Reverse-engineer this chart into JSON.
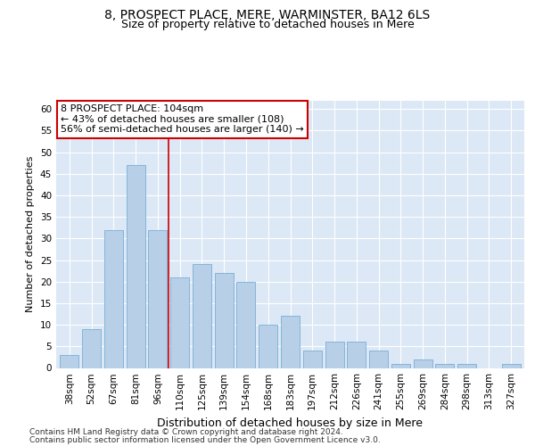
{
  "title1": "8, PROSPECT PLACE, MERE, WARMINSTER, BA12 6LS",
  "title2": "Size of property relative to detached houses in Mere",
  "xlabel": "Distribution of detached houses by size in Mere",
  "ylabel": "Number of detached properties",
  "categories": [
    "38sqm",
    "52sqm",
    "67sqm",
    "81sqm",
    "96sqm",
    "110sqm",
    "125sqm",
    "139sqm",
    "154sqm",
    "168sqm",
    "183sqm",
    "197sqm",
    "212sqm",
    "226sqm",
    "241sqm",
    "255sqm",
    "269sqm",
    "284sqm",
    "298sqm",
    "313sqm",
    "327sqm"
  ],
  "values": [
    3,
    9,
    32,
    47,
    32,
    21,
    24,
    22,
    20,
    10,
    12,
    4,
    6,
    6,
    4,
    1,
    2,
    1,
    1,
    0,
    1
  ],
  "bar_color": "#b8cfe8",
  "bar_edge_color": "#7aaed6",
  "vline_x_index": 4.5,
  "vline_color": "#cc0000",
  "annotation_line1": "8 PROSPECT PLACE: 104sqm",
  "annotation_line2": "← 43% of detached houses are smaller (108)",
  "annotation_line3": "56% of semi-detached houses are larger (140) →",
  "annotation_box_color": "#ffffff",
  "annotation_box_edge": "#cc0000",
  "ylim": [
    0,
    62
  ],
  "yticks": [
    0,
    5,
    10,
    15,
    20,
    25,
    30,
    35,
    40,
    45,
    50,
    55,
    60
  ],
  "footer1": "Contains HM Land Registry data © Crown copyright and database right 2024.",
  "footer2": "Contains public sector information licensed under the Open Government Licence v3.0.",
  "plot_bg_color": "#dce8f5",
  "title1_fontsize": 10,
  "title2_fontsize": 9,
  "xlabel_fontsize": 9,
  "ylabel_fontsize": 8,
  "tick_fontsize": 7.5,
  "footer_fontsize": 6.5,
  "annotation_fontsize": 8
}
